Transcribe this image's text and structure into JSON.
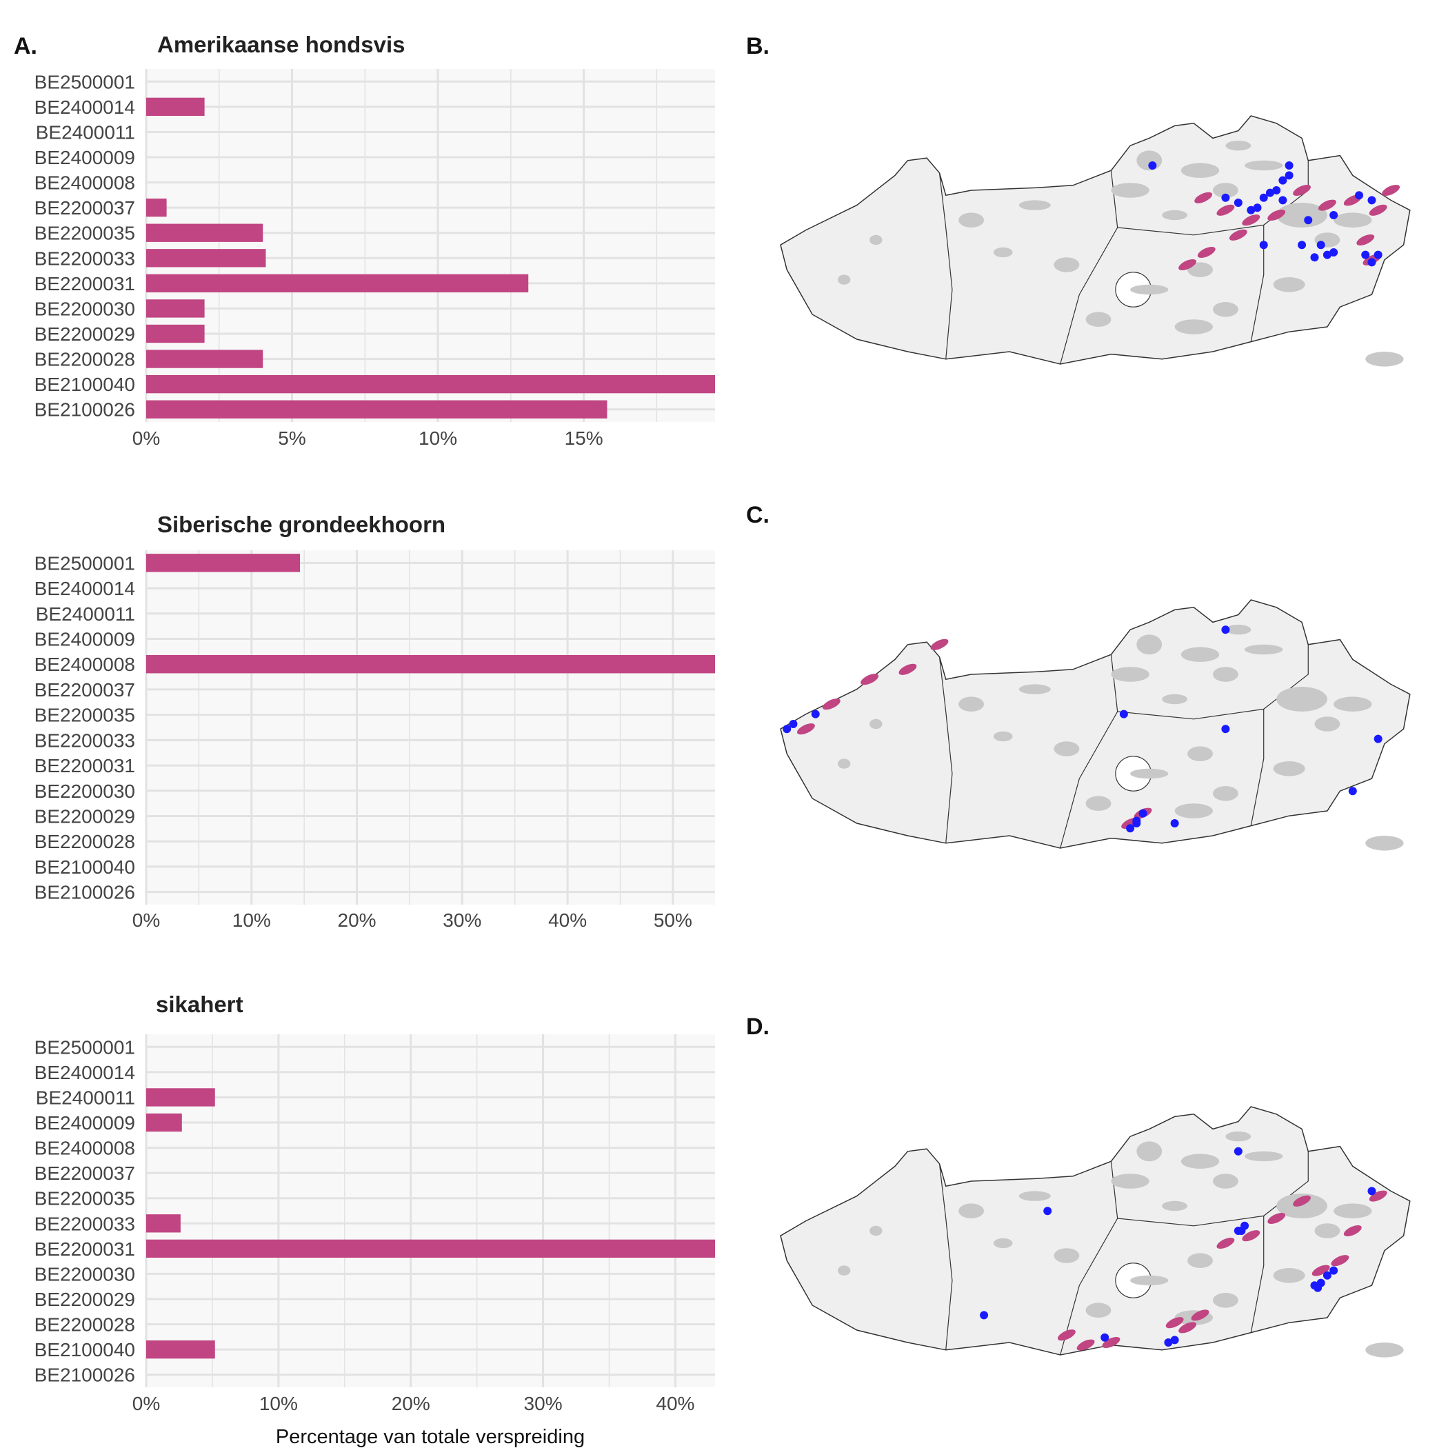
{
  "panel_letters": {
    "a": "A.",
    "b": "B.",
    "c": "C.",
    "d": "D."
  },
  "colors": {
    "bar": "#c04582",
    "panel_bg": "#f8f8f8",
    "grid": "#e2e2e2",
    "map_land": "#efefef",
    "map_habitat": "#c8c8c8",
    "map_border": "#333333",
    "map_range": "#c04582",
    "map_point": "#1a1aff"
  },
  "chart_data": [
    {
      "type": "bar",
      "orientation": "horizontal",
      "title": "Amerikaanse hondsvis",
      "categories": [
        "BE2500001",
        "BE2400014",
        "BE2400011",
        "BE2400009",
        "BE2400008",
        "BE2200037",
        "BE2200035",
        "BE2200033",
        "BE2200031",
        "BE2200030",
        "BE2200029",
        "BE2200028",
        "BE2100040",
        "BE2100026"
      ],
      "values": [
        0,
        2.0,
        0,
        0,
        0,
        0.7,
        4.0,
        4.1,
        13.1,
        2.0,
        2.0,
        4.0,
        19.5,
        15.8
      ],
      "xlim": [
        0,
        19.5
      ],
      "xticks": [
        0,
        5,
        10,
        15
      ],
      "tick_labels": [
        "0%",
        "5%",
        "10%",
        "15%"
      ],
      "grid": true,
      "xlabel": ""
    },
    {
      "type": "bar",
      "orientation": "horizontal",
      "title": "Siberische grondeekhoorn",
      "categories": [
        "BE2500001",
        "BE2400014",
        "BE2400011",
        "BE2400009",
        "BE2400008",
        "BE2200037",
        "BE2200035",
        "BE2200033",
        "BE2200031",
        "BE2200030",
        "BE2200029",
        "BE2200028",
        "BE2100040",
        "BE2100026"
      ],
      "values": [
        14.6,
        0,
        0,
        0,
        54,
        0,
        0,
        0,
        0,
        0,
        0,
        0,
        0,
        0
      ],
      "xlim": [
        0,
        54
      ],
      "xticks": [
        0,
        10,
        20,
        30,
        40,
        50
      ],
      "tick_labels": [
        "0%",
        "10%",
        "20%",
        "30%",
        "40%",
        "50%"
      ],
      "grid": true,
      "xlabel": ""
    },
    {
      "type": "bar",
      "orientation": "horizontal",
      "title": "sikahert",
      "categories": [
        "BE2500001",
        "BE2400014",
        "BE2400011",
        "BE2400009",
        "BE2400008",
        "BE2200037",
        "BE2200035",
        "BE2200033",
        "BE2200031",
        "BE2200030",
        "BE2200029",
        "BE2200028",
        "BE2100040",
        "BE2100026"
      ],
      "values": [
        0,
        0,
        5.2,
        2.7,
        0,
        0,
        0,
        2.6,
        43,
        0,
        0,
        0,
        5.2,
        0
      ],
      "xlim": [
        0,
        43
      ],
      "xticks": [
        0,
        10,
        20,
        30,
        40
      ],
      "tick_labels": [
        "0%",
        "10%",
        "20%",
        "30%",
        "40%"
      ],
      "grid": true,
      "xlabel": "Percentage van totale verspreiding"
    }
  ],
  "maps": [
    {
      "range_patches": [
        [
          0.665,
          0.33
        ],
        [
          0.7,
          0.38
        ],
        [
          0.74,
          0.42
        ],
        [
          0.78,
          0.4
        ],
        [
          0.82,
          0.3
        ],
        [
          0.86,
          0.36
        ],
        [
          0.9,
          0.34
        ],
        [
          0.94,
          0.38
        ],
        [
          0.96,
          0.3
        ],
        [
          0.72,
          0.48
        ],
        [
          0.67,
          0.55
        ],
        [
          0.64,
          0.6
        ],
        [
          0.92,
          0.5
        ],
        [
          0.93,
          0.58
        ]
      ],
      "points": [
        [
          0.585,
          0.2
        ],
        [
          0.7,
          0.33
        ],
        [
          0.72,
          0.35
        ],
        [
          0.74,
          0.38
        ],
        [
          0.75,
          0.37
        ],
        [
          0.76,
          0.33
        ],
        [
          0.77,
          0.31
        ],
        [
          0.78,
          0.3
        ],
        [
          0.79,
          0.26
        ],
        [
          0.8,
          0.2
        ],
        [
          0.8,
          0.24
        ],
        [
          0.79,
          0.34
        ],
        [
          0.83,
          0.42
        ],
        [
          0.87,
          0.4
        ],
        [
          0.91,
          0.32
        ],
        [
          0.93,
          0.34
        ],
        [
          0.76,
          0.52
        ],
        [
          0.82,
          0.52
        ],
        [
          0.85,
          0.52
        ],
        [
          0.86,
          0.56
        ],
        [
          0.84,
          0.57
        ],
        [
          0.87,
          0.55
        ],
        [
          0.92,
          0.56
        ],
        [
          0.93,
          0.59
        ],
        [
          0.94,
          0.56
        ]
      ]
    },
    {
      "range_patches": [
        [
          0.04,
          0.52
        ],
        [
          0.08,
          0.42
        ],
        [
          0.14,
          0.32
        ],
        [
          0.2,
          0.28
        ],
        [
          0.25,
          0.18
        ],
        [
          0.55,
          0.9
        ],
        [
          0.57,
          0.86
        ]
      ],
      "points": [
        [
          0.01,
          0.52
        ],
        [
          0.02,
          0.5
        ],
        [
          0.055,
          0.46
        ],
        [
          0.54,
          0.46
        ],
        [
          0.7,
          0.12
        ],
        [
          0.7,
          0.52
        ],
        [
          0.94,
          0.56
        ],
        [
          0.9,
          0.77
        ],
        [
          0.57,
          0.86
        ],
        [
          0.56,
          0.9
        ],
        [
          0.55,
          0.92
        ],
        [
          0.56,
          0.89
        ],
        [
          0.62,
          0.9
        ]
      ]
    },
    {
      "range_patches": [
        [
          0.7,
          0.55
        ],
        [
          0.74,
          0.52
        ],
        [
          0.78,
          0.45
        ],
        [
          0.82,
          0.38
        ],
        [
          0.85,
          0.66
        ],
        [
          0.88,
          0.62
        ],
        [
          0.9,
          0.5
        ],
        [
          0.94,
          0.36
        ],
        [
          0.62,
          0.87
        ],
        [
          0.64,
          0.89
        ],
        [
          0.66,
          0.84
        ],
        [
          0.45,
          0.92
        ],
        [
          0.48,
          0.96
        ],
        [
          0.52,
          0.95
        ]
      ],
      "points": [
        [
          0.42,
          0.42
        ],
        [
          0.72,
          0.5
        ],
        [
          0.725,
          0.5
        ],
        [
          0.73,
          0.48
        ],
        [
          0.72,
          0.18
        ],
        [
          0.84,
          0.72
        ],
        [
          0.845,
          0.73
        ],
        [
          0.85,
          0.71
        ],
        [
          0.86,
          0.68
        ],
        [
          0.87,
          0.66
        ],
        [
          0.93,
          0.34
        ],
        [
          0.32,
          0.84
        ],
        [
          0.51,
          0.93
        ],
        [
          0.61,
          0.95
        ],
        [
          0.62,
          0.94
        ]
      ]
    }
  ]
}
